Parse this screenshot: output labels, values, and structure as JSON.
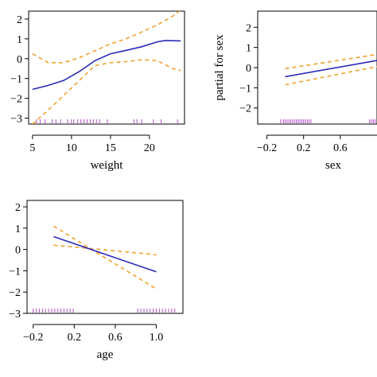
{
  "chart_data": [
    {
      "type": "line",
      "xlabel": "weight",
      "ylabel": "",
      "xlim": [
        4.5,
        24.5
      ],
      "ylim": [
        -3.3,
        2.4
      ],
      "xticks": [
        5,
        10,
        15,
        20
      ],
      "xtick_labels": [
        "5",
        "10",
        "15",
        "20"
      ],
      "yticks": [
        -3,
        -2,
        -1,
        0,
        1,
        2
      ],
      "ytick_labels": [
        "−3",
        "−2",
        "−1",
        "0",
        "1",
        "2"
      ],
      "fit": {
        "x": [
          5,
          7,
          9,
          11,
          13,
          15,
          17,
          19,
          21,
          22,
          24
        ],
        "y": [
          -1.55,
          -1.35,
          -1.1,
          -0.65,
          -0.1,
          0.25,
          0.42,
          0.6,
          0.85,
          0.92,
          0.9
        ]
      },
      "upper": {
        "x": [
          5,
          7,
          9,
          11,
          13,
          15,
          17,
          19,
          21,
          23,
          24
        ],
        "y": [
          0.25,
          -0.2,
          -0.2,
          0.05,
          0.4,
          0.75,
          1.0,
          1.35,
          1.7,
          2.15,
          2.45
        ]
      },
      "lower": {
        "x": [
          5,
          7,
          9,
          11,
          13,
          15,
          17,
          19,
          21,
          23,
          24
        ],
        "y": [
          -3.3,
          -2.6,
          -1.85,
          -1.1,
          -0.35,
          -0.2,
          -0.15,
          -0.05,
          -0.1,
          -0.5,
          -0.6
        ]
      },
      "rug": [
        5.5,
        6.0,
        6.6,
        7.5,
        8.0,
        8.6,
        9.5,
        10.0,
        10.3,
        10.8,
        11.2,
        11.6,
        12.0,
        12.4,
        12.8,
        13.2,
        13.6,
        14.6,
        18.0,
        18.4,
        19.0,
        20.5,
        21.5,
        23.6
      ]
    },
    {
      "type": "line",
      "xlabel": "sex",
      "ylabel": "partial for sex",
      "xlim": [
        -0.3,
        1.0
      ],
      "ylim": [
        -2.8,
        2.8
      ],
      "xticks": [
        -0.2,
        0.2,
        0.6
      ],
      "xtick_labels": [
        "−0.2",
        "0.2",
        "0.6"
      ],
      "yticks": [
        -2,
        -1,
        0,
        1,
        2
      ],
      "ytick_labels": [
        "−2",
        "−1",
        "0",
        "1",
        "2"
      ],
      "fit": {
        "x": [
          0.0,
          1.0
        ],
        "y": [
          -0.45,
          0.35
        ]
      },
      "upper": {
        "x": [
          0.0,
          1.0
        ],
        "y": [
          -0.05,
          0.65
        ]
      },
      "lower": {
        "x": [
          0.0,
          1.0
        ],
        "y": [
          -0.85,
          0.05
        ]
      },
      "rug": [
        -0.05,
        -0.02,
        0.0,
        0.02,
        0.04,
        0.06,
        0.08,
        0.1,
        0.12,
        0.14,
        0.16,
        0.18,
        0.2,
        0.22,
        0.24,
        0.26,
        0.28,
        0.92,
        0.94,
        0.96,
        0.98
      ]
    },
    {
      "type": "line",
      "xlabel": "age",
      "ylabel": "",
      "xlim": [
        -0.26,
        1.26
      ],
      "ylim": [
        -3.0,
        2.3
      ],
      "xticks": [
        -0.2,
        0.2,
        0.6,
        1.0
      ],
      "xtick_labels": [
        "−0.2",
        "0.2",
        "0.6",
        "1.0"
      ],
      "yticks": [
        -3,
        -2,
        -1,
        0,
        1,
        2
      ],
      "ytick_labels": [
        "−3",
        "−2",
        "−1",
        "0",
        "1",
        "2"
      ],
      "fit": {
        "x": [
          0.0,
          1.0
        ],
        "y": [
          0.6,
          -1.05
        ]
      },
      "upper": {
        "x": [
          0.0,
          0.35,
          1.0
        ],
        "y": [
          1.1,
          0.05,
          -1.85
        ]
      },
      "lower": {
        "x": [
          0.0,
          0.35,
          1.0
        ],
        "y": [
          0.2,
          0.05,
          -0.25
        ]
      },
      "rug": [
        -0.2,
        -0.17,
        -0.14,
        -0.11,
        -0.08,
        -0.05,
        -0.02,
        0.01,
        0.04,
        0.07,
        0.1,
        0.13,
        0.16,
        0.19,
        0.82,
        0.85,
        0.88,
        0.91,
        0.94,
        0.97,
        1.0,
        1.03,
        1.06,
        1.09,
        1.12,
        1.15,
        1.18
      ]
    }
  ]
}
